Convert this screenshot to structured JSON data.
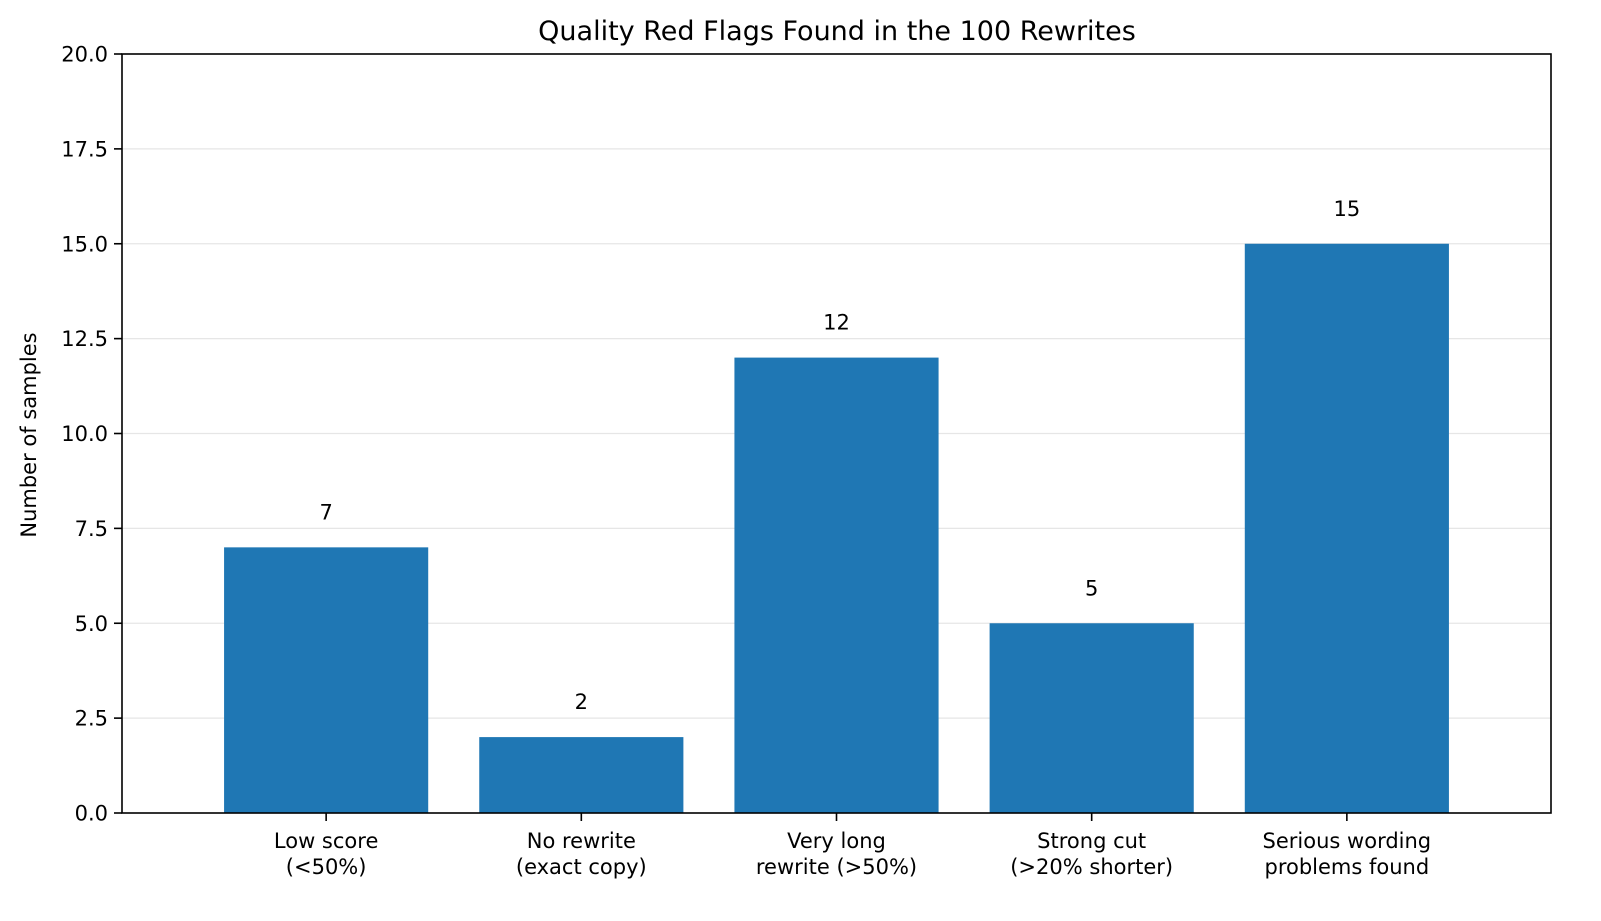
{
  "chart_data": {
    "type": "bar",
    "title": "Quality Red Flags Found in the 100 Rewrites",
    "xlabel": "",
    "ylabel": "Number of samples",
    "ylim": [
      0,
      20
    ],
    "yticks": [
      "0.0",
      "2.5",
      "5.0",
      "7.5",
      "10.0",
      "12.5",
      "15.0",
      "17.5",
      "20.0"
    ],
    "ytick_values": [
      0,
      2.5,
      5,
      7.5,
      10,
      12.5,
      15,
      17.5,
      20
    ],
    "grid": "y-axis horizontal lines",
    "categories": [
      [
        "Low score",
        "(<50%)"
      ],
      [
        "No rewrite",
        "(exact copy)"
      ],
      [
        "Very long",
        "rewrite (>50%)"
      ],
      [
        "Strong cut",
        "(>20% shorter)"
      ],
      [
        "Serious wording",
        "problems found"
      ]
    ],
    "values": [
      7,
      2,
      12,
      5,
      15
    ],
    "value_labels": [
      "7",
      "2",
      "12",
      "5",
      "15"
    ],
    "bar_color": "#1f77b4",
    "grid_color": "#e6e6e6"
  }
}
